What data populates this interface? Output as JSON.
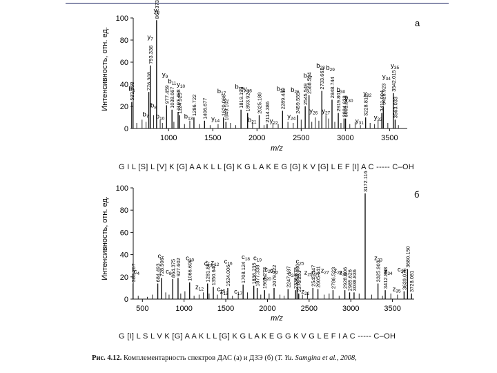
{
  "figure": {
    "caption_label": "Рис. 4.12.",
    "caption_text": "Комплементарность спектров ДАС (а) и ДЗЭ (б) (",
    "caption_cite": "T. Yu. Samgina et al., 2008,",
    "sequence_a": "G I L [S] L [V] K [G] A A K L L [G] K G L A K E G [G] K V [G] L E F [I] A C ----- C–OH",
    "sequence_b": "G [I] L S L V K [G] A A K L L [G] K G L A K E G G K V G L E F I A C ----- C–OH"
  },
  "chart_data": [
    {
      "type": "bar",
      "panel": "а",
      "xlabel": "m/z",
      "ylabel": "Интенсивность, отн. ед.",
      "xlim": [
        600,
        3700
      ],
      "ylim": [
        0,
        100
      ],
      "xticks": [
        1000,
        1500,
        2000,
        2500,
        3000,
        3500
      ],
      "yticks": [
        0,
        20,
        40,
        60,
        80,
        100
      ],
      "peaks": [
        {
          "x": 583.363,
          "y": 24,
          "label": "583.363"
        },
        {
          "x": 776.308,
          "y": 33,
          "label": "776.308"
        },
        {
          "x": 793.336,
          "y": 57,
          "label": "793.336"
        },
        {
          "x": 864.373,
          "y": 98,
          "label": "864.373"
        },
        {
          "x": 977.459,
          "y": 21,
          "label": "977.459"
        },
        {
          "x": 1038.667,
          "y": 17,
          "label": "1038.667"
        },
        {
          "x": 1107.498,
          "y": 15,
          "label": "1107.498"
        },
        {
          "x": 1124.529,
          "y": 12,
          "label": "1124.529"
        },
        {
          "x": 1286.722,
          "y": 10,
          "label": "1286.722"
        },
        {
          "x": 1406.677,
          "y": 7,
          "label": "1406.677"
        },
        {
          "x": 1620.066,
          "y": 10,
          "label": "1620.066"
        },
        {
          "x": 1649.102,
          "y": 6,
          "label": "1649.102"
        },
        {
          "x": 1819.199,
          "y": 17,
          "label": "1819.199"
        },
        {
          "x": 1893.924,
          "y": 14,
          "label": "1893.924"
        },
        {
          "x": 2025.189,
          "y": 12,
          "label": "2025.189"
        },
        {
          "x": 2114.386,
          "y": 4,
          "label": "2114.386"
        },
        {
          "x": 2289.449,
          "y": 16,
          "label": "2289.449"
        },
        {
          "x": 2459.559,
          "y": 12,
          "label": "2459.559"
        },
        {
          "x": 2545.549,
          "y": 20,
          "label": "2545.549"
        },
        {
          "x": 2588.594,
          "y": 30,
          "label": "2588.594"
        },
        {
          "x": 2733.661,
          "y": 34,
          "label": "2733.661"
        },
        {
          "x": 2848.744,
          "y": 26,
          "label": "2848.744"
        },
        {
          "x": 2919.801,
          "y": 14,
          "label": "2919.801"
        },
        {
          "x": 2984.633,
          "y": 9,
          "label": "2984.633"
        },
        {
          "x": 3001.848,
          "y": 9,
          "label": "3001.848"
        },
        {
          "x": 3228.816,
          "y": 10,
          "label": "3228.816"
        },
        {
          "x": 3411.904,
          "y": 14,
          "label": "3411.904"
        },
        {
          "x": 3428.923,
          "y": 20,
          "label": "3428.923"
        },
        {
          "x": 3542.015,
          "y": 32,
          "label": "3542.015"
        },
        {
          "x": 3563.033,
          "y": 8,
          "label": "3563.033"
        }
      ],
      "minor_peaks": [
        {
          "x": 640,
          "y": 5
        },
        {
          "x": 700,
          "y": 8
        },
        {
          "x": 745,
          "y": 6
        },
        {
          "x": 830,
          "y": 12
        },
        {
          "x": 905,
          "y": 8
        },
        {
          "x": 930,
          "y": 5
        },
        {
          "x": 1060,
          "y": 6
        },
        {
          "x": 1180,
          "y": 4
        },
        {
          "x": 1240,
          "y": 7
        },
        {
          "x": 1350,
          "y": 4
        },
        {
          "x": 1470,
          "y": 3
        },
        {
          "x": 1560,
          "y": 4
        },
        {
          "x": 1700,
          "y": 5
        },
        {
          "x": 1760,
          "y": 3
        },
        {
          "x": 1950,
          "y": 6
        },
        {
          "x": 2080,
          "y": 3
        },
        {
          "x": 2180,
          "y": 5
        },
        {
          "x": 2240,
          "y": 4
        },
        {
          "x": 2350,
          "y": 6
        },
        {
          "x": 2410,
          "y": 5
        },
        {
          "x": 2500,
          "y": 8
        },
        {
          "x": 2620,
          "y": 6
        },
        {
          "x": 2660,
          "y": 10
        },
        {
          "x": 2700,
          "y": 7
        },
        {
          "x": 2780,
          "y": 12
        },
        {
          "x": 2810,
          "y": 9
        },
        {
          "x": 2880,
          "y": 6
        },
        {
          "x": 2950,
          "y": 5
        },
        {
          "x": 3050,
          "y": 4
        },
        {
          "x": 3110,
          "y": 6
        },
        {
          "x": 3170,
          "y": 3
        },
        {
          "x": 3280,
          "y": 5
        },
        {
          "x": 3330,
          "y": 4
        },
        {
          "x": 3370,
          "y": 7
        },
        {
          "x": 3480,
          "y": 5
        },
        {
          "x": 3600,
          "y": 3
        }
      ],
      "ion_labels": [
        {
          "name": "y",
          "sub": "8",
          "x": 864,
          "y": 105
        },
        {
          "name": "y",
          "sub": "7",
          "x": 793,
          "y": 81
        },
        {
          "name": "b",
          "sub": "5",
          "x": 583,
          "y": 34
        },
        {
          "name": "b",
          "sub": "7",
          "x": 740,
          "y": 11
        },
        {
          "name": "b",
          "sub": "8",
          "x": 830,
          "y": 19
        },
        {
          "name": "b",
          "sub": "10",
          "x": 905,
          "y": 9
        },
        {
          "name": "y",
          "sub": "9",
          "x": 960,
          "y": 47
        },
        {
          "name": "b",
          "sub": "11",
          "x": 1040,
          "y": 41
        },
        {
          "name": "y",
          "sub": "10",
          "x": 1140,
          "y": 38
        },
        {
          "name": "b",
          "sub": "13",
          "x": 1225,
          "y": 9
        },
        {
          "name": "b",
          "sub": "17",
          "x": 1600,
          "y": 32
        },
        {
          "name": "y",
          "sub": "14",
          "x": 1530,
          "y": 7
        },
        {
          "name": "b",
          "sub": "19",
          "x": 1800,
          "y": 36
        },
        {
          "name": "y",
          "sub": "18",
          "x": 1895,
          "y": 34
        },
        {
          "name": "b",
          "sub": "21",
          "x": 1945,
          "y": 6
        },
        {
          "name": "b",
          "sub": "24",
          "x": 2270,
          "y": 34
        },
        {
          "name": "b",
          "sub": "26",
          "x": 2430,
          "y": 33
        },
        {
          "name": "y",
          "sub": "22",
          "x": 2190,
          "y": 5
        },
        {
          "name": "y",
          "sub": "24",
          "x": 2390,
          "y": 9
        },
        {
          "name": "b",
          "sub": "27",
          "x": 2575,
          "y": 46
        },
        {
          "name": "b",
          "sub": "28",
          "x": 2720,
          "y": 55
        },
        {
          "name": "b",
          "sub": "29",
          "x": 2830,
          "y": 53
        },
        {
          "name": "y",
          "sub": "26",
          "x": 2640,
          "y": 14
        },
        {
          "name": "y",
          "sub": "27",
          "x": 2780,
          "y": 14
        },
        {
          "name": "b",
          "sub": "30",
          "x": 2950,
          "y": 33
        },
        {
          "name": "y",
          "sub": "30",
          "x": 3040,
          "y": 25
        },
        {
          "name": "y",
          "sub": "31",
          "x": 3160,
          "y": 5
        },
        {
          "name": "y",
          "sub": "32",
          "x": 3250,
          "y": 30
        },
        {
          "name": "y",
          "sub": "33",
          "x": 3370,
          "y": 8
        },
        {
          "name": "y",
          "sub": "34",
          "x": 3465,
          "y": 45
        },
        {
          "name": "y",
          "sub": "35",
          "x": 3560,
          "y": 55
        }
      ]
    },
    {
      "type": "bar",
      "panel": "б",
      "xlabel": "m/z",
      "ylabel": "Интенсивность, отн. ед.",
      "xlim": [
        390,
        3760
      ],
      "ylim": [
        0,
        100
      ],
      "xticks": [
        500,
        1000,
        1500,
        2000,
        2500,
        3000,
        3500
      ],
      "yticks": [
        0,
        20,
        40,
        60,
        80,
        100
      ],
      "peaks": [
        {
          "x": 388.267,
          "y": 14,
          "label": "388.267"
        },
        {
          "x": 684.493,
          "y": 14,
          "label": "684.493"
        },
        {
          "x": 728.506,
          "y": 19,
          "label": "728.506"
        },
        {
          "x": 864.375,
          "y": 18,
          "label": "864.375"
        },
        {
          "x": 927.602,
          "y": 19,
          "label": "927.602"
        },
        {
          "x": 1066.699,
          "y": 15,
          "label": "1066.699"
        },
        {
          "x": 1281.867,
          "y": 14,
          "label": "1281.867"
        },
        {
          "x": 1350.64,
          "y": 11,
          "label": "1350.640"
        },
        {
          "x": 1524.006,
          "y": 10,
          "label": "1524.006"
        },
        {
          "x": 1708.124,
          "y": 13,
          "label": "1708.124"
        },
        {
          "x": 1836.235,
          "y": 12,
          "label": "1836.235"
        },
        {
          "x": 1877.338,
          "y": 10,
          "label": "1877.338"
        },
        {
          "x": 1965.273,
          "y": 8,
          "label": "1965.273"
        },
        {
          "x": 2079.322,
          "y": 10,
          "label": "2079.322"
        },
        {
          "x": 2247.187,
          "y": 9,
          "label": "2247.187"
        },
        {
          "x": 2336.475,
          "y": 8,
          "label": "2336.475"
        },
        {
          "x": 2355.3,
          "y": 11,
          "label": "2355.300"
        },
        {
          "x": 2375.251,
          "y": 5,
          "label": "2375.251"
        },
        {
          "x": 2545.347,
          "y": 10,
          "label": "2545.347"
        },
        {
          "x": 2605.641,
          "y": 9,
          "label": "2605.641"
        },
        {
          "x": 2786.523,
          "y": 8,
          "label": "2786.523"
        },
        {
          "x": 2928.606,
          "y": 8,
          "label": "2928.606"
        },
        {
          "x": 2985.626,
          "y": 6,
          "label": "2985.626"
        },
        {
          "x": 3038.836,
          "y": 6,
          "label": "3038.836"
        },
        {
          "x": 3172.116,
          "y": 95,
          "label": "3172.116"
        },
        {
          "x": 3325.903,
          "y": 14,
          "label": "3325.903"
        },
        {
          "x": 3412.888,
          "y": 8,
          "label": "3412.888"
        },
        {
          "x": 3639.076,
          "y": 7,
          "label": "3639.076"
        },
        {
          "x": 3680.15,
          "y": 27,
          "label": "3680.150"
        },
        {
          "x": 3728.081,
          "y": 5,
          "label": "3728.081"
        }
      ],
      "minor_peaks": [
        {
          "x": 450,
          "y": 3
        },
        {
          "x": 560,
          "y": 2
        },
        {
          "x": 620,
          "y": 4
        },
        {
          "x": 780,
          "y": 6
        },
        {
          "x": 820,
          "y": 4
        },
        {
          "x": 960,
          "y": 5
        },
        {
          "x": 1010,
          "y": 7
        },
        {
          "x": 1120,
          "y": 3
        },
        {
          "x": 1180,
          "y": 4
        },
        {
          "x": 1230,
          "y": 6
        },
        {
          "x": 1300,
          "y": 5
        },
        {
          "x": 1400,
          "y": 4
        },
        {
          "x": 1450,
          "y": 6
        },
        {
          "x": 1580,
          "y": 3
        },
        {
          "x": 1650,
          "y": 5
        },
        {
          "x": 1760,
          "y": 6
        },
        {
          "x": 1920,
          "y": 4
        },
        {
          "x": 2020,
          "y": 5
        },
        {
          "x": 2150,
          "y": 4
        },
        {
          "x": 2200,
          "y": 3
        },
        {
          "x": 2420,
          "y": 4
        },
        {
          "x": 2480,
          "y": 6
        },
        {
          "x": 2680,
          "y": 4
        },
        {
          "x": 2740,
          "y": 5
        },
        {
          "x": 2860,
          "y": 3
        },
        {
          "x": 3100,
          "y": 5
        },
        {
          "x": 3250,
          "y": 4
        },
        {
          "x": 3380,
          "y": 3
        },
        {
          "x": 3480,
          "y": 5
        },
        {
          "x": 3560,
          "y": 4
        }
      ],
      "ion_labels": [
        {
          "name": "c",
          "sub": "4",
          "x": 430,
          "y": 23
        },
        {
          "name": "c",
          "sub": "7",
          "x": 720,
          "y": 37
        },
        {
          "name": "c",
          "sub": "8",
          "x": 815,
          "y": 23
        },
        {
          "name": "c",
          "sub": "10",
          "x": 1070,
          "y": 35
        },
        {
          "name": "z",
          "sub": "12",
          "x": 1185,
          "y": 9
        },
        {
          "name": "c",
          "sub": "13",
          "x": 1290,
          "y": 30
        },
        {
          "name": "z",
          "sub": "12",
          "x": 1370,
          "y": 31
        },
        {
          "name": "c",
          "sub": "16",
          "x": 1530,
          "y": 32
        },
        {
          "name": "c",
          "sub": "15",
          "x": 1445,
          "y": 7
        },
        {
          "name": "z",
          "sub": "15",
          "x": 1480,
          "y": 5
        },
        {
          "name": "c",
          "sub": "17",
          "x": 1650,
          "y": 5
        },
        {
          "name": "c",
          "sub": "18",
          "x": 1740,
          "y": 36
        },
        {
          "name": "c",
          "sub": "19",
          "x": 1880,
          "y": 35
        },
        {
          "name": "c",
          "sub": "20",
          "x": 2015,
          "y": 25
        },
        {
          "name": "z",
          "sub": "20",
          "x": 1995,
          "y": 18
        },
        {
          "name": "c",
          "sub": "22",
          "x": 2080,
          "y": 24
        },
        {
          "name": "c",
          "sub": "24",
          "x": 2295,
          "y": 21
        },
        {
          "name": "c",
          "sub": "25",
          "x": 2390,
          "y": 32
        },
        {
          "name": "z",
          "sub": "25",
          "x": 2490,
          "y": 22
        },
        {
          "name": "c",
          "sub": "27",
          "x": 2580,
          "y": 22
        },
        {
          "name": "z",
          "sub": "27",
          "x": 2690,
          "y": 24
        },
        {
          "name": "z",
          "sub": "29",
          "x": 2845,
          "y": 24
        },
        {
          "name": "z",
          "sub": "30",
          "x": 2910,
          "y": 22
        },
        {
          "name": "z",
          "sub": "22",
          "x": 2455,
          "y": 5
        },
        {
          "name": "z",
          "sub": "33",
          "x": 3330,
          "y": 35
        },
        {
          "name": "z",
          "sub": "34",
          "x": 3450,
          "y": 23
        },
        {
          "name": "z",
          "sub": "35",
          "x": 3550,
          "y": 7
        },
        {
          "name": "c",
          "sub": "34",
          "x": 3610,
          "y": 25
        }
      ]
    }
  ]
}
